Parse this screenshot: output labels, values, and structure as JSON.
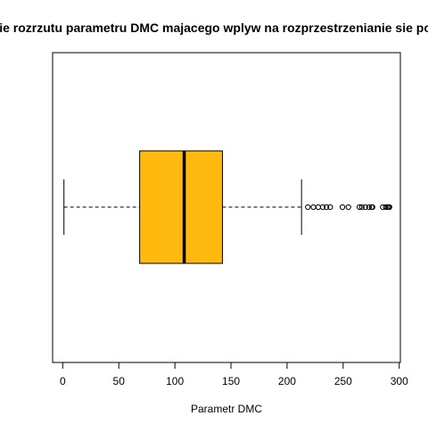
{
  "chart_data": {
    "type": "boxplot",
    "orientation": "horizontal",
    "title": "Badanie rozrzutu parametru DMC majacego wplyw na rozprzestrzenianie sie pozarow",
    "xlabel": "Parametr DMC",
    "ylabel": "",
    "xlim": [
      -9,
      301
    ],
    "x_ticks": [
      0,
      50,
      100,
      150,
      200,
      250,
      300
    ],
    "x_tick_labels": [
      "0",
      "50",
      "100",
      "150",
      "200",
      "250",
      "300"
    ],
    "box": {
      "min": 1.1,
      "q1": 68.6,
      "median": 108.3,
      "q3": 142.4,
      "max": 212.9
    },
    "outliers": [
      218.5,
      223.5,
      227.8,
      231.8,
      235.1,
      238.5,
      249.4,
      254.7,
      264.5,
      266.6,
      269.7,
      273.1,
      275.4,
      276.2,
      285.3,
      287.9,
      289.5,
      290.5,
      291.3
    ],
    "box_color": "#FFB90F",
    "line_color": "#000000",
    "grid": false,
    "legend": "none"
  }
}
